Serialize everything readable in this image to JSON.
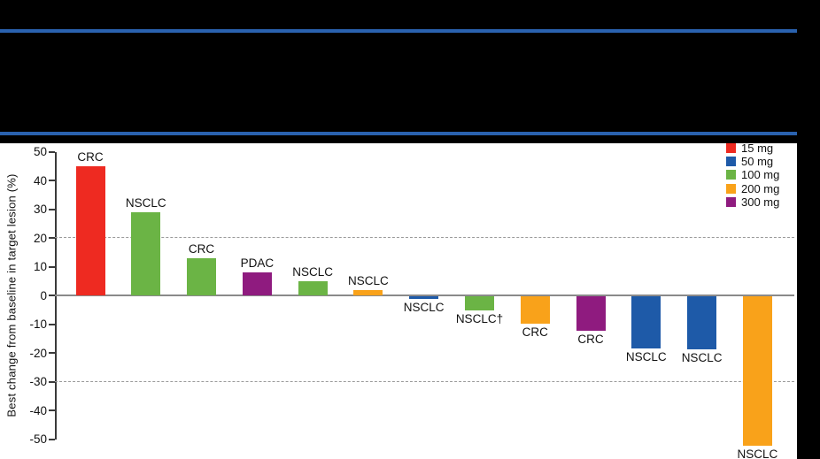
{
  "header": {
    "band_color": "#000000",
    "rule_color": "#2A62AF"
  },
  "chart_data": {
    "type": "bar",
    "subtype": "waterfall",
    "title": "",
    "xlabel": "",
    "ylabel": "Best change from baseline in target lesion (%)",
    "ylim": [
      -50,
      50
    ],
    "ytick_interval": 10,
    "yticks": [
      50,
      40,
      30,
      20,
      10,
      0,
      -10,
      -20,
      -30,
      -40,
      -50
    ],
    "reference_lines": [
      20,
      -30
    ],
    "grid": "dashed-reference-only",
    "bars": [
      {
        "label": "CRC",
        "dose": "15 mg",
        "value": 45
      },
      {
        "label": "NSCLC",
        "dose": "100 mg",
        "value": 29
      },
      {
        "label": "CRC",
        "dose": "100 mg",
        "value": 13
      },
      {
        "label": "PDAC",
        "dose": "300 mg",
        "value": 8
      },
      {
        "label": "NSCLC",
        "dose": "100 mg",
        "value": 5
      },
      {
        "label": "NSCLC",
        "dose": "200 mg",
        "value": 2
      },
      {
        "label": "NSCLC",
        "dose": "50 mg",
        "value": -1
      },
      {
        "label": "NSCLC†",
        "dose": "100 mg",
        "value": -5
      },
      {
        "label": "CRC",
        "dose": "200 mg",
        "value": -9.5
      },
      {
        "label": "CRC",
        "dose": "300 mg",
        "value": -12
      },
      {
        "label": "NSCLC",
        "dose": "50 mg",
        "value": -18
      },
      {
        "label": "NSCLC",
        "dose": "50 mg",
        "value": -18.5
      },
      {
        "label": "NSCLC",
        "dose": "200 mg",
        "value": -52
      }
    ],
    "dose_colors": {
      "15 mg": "#EE2A21",
      "50 mg": "#1E5AA8",
      "100 mg": "#6BB445",
      "200 mg": "#F9A21A",
      "300 mg": "#8F1B7F"
    },
    "legend": {
      "position": "top-right",
      "items": [
        {
          "label": "15 mg",
          "color": "#EE2A21"
        },
        {
          "label": "50 mg",
          "color": "#1E5AA8"
        },
        {
          "label": "100 mg",
          "color": "#6BB445"
        },
        {
          "label": "200 mg",
          "color": "#F9A21A"
        },
        {
          "label": "300 mg",
          "color": "#8F1B7F"
        }
      ]
    }
  }
}
